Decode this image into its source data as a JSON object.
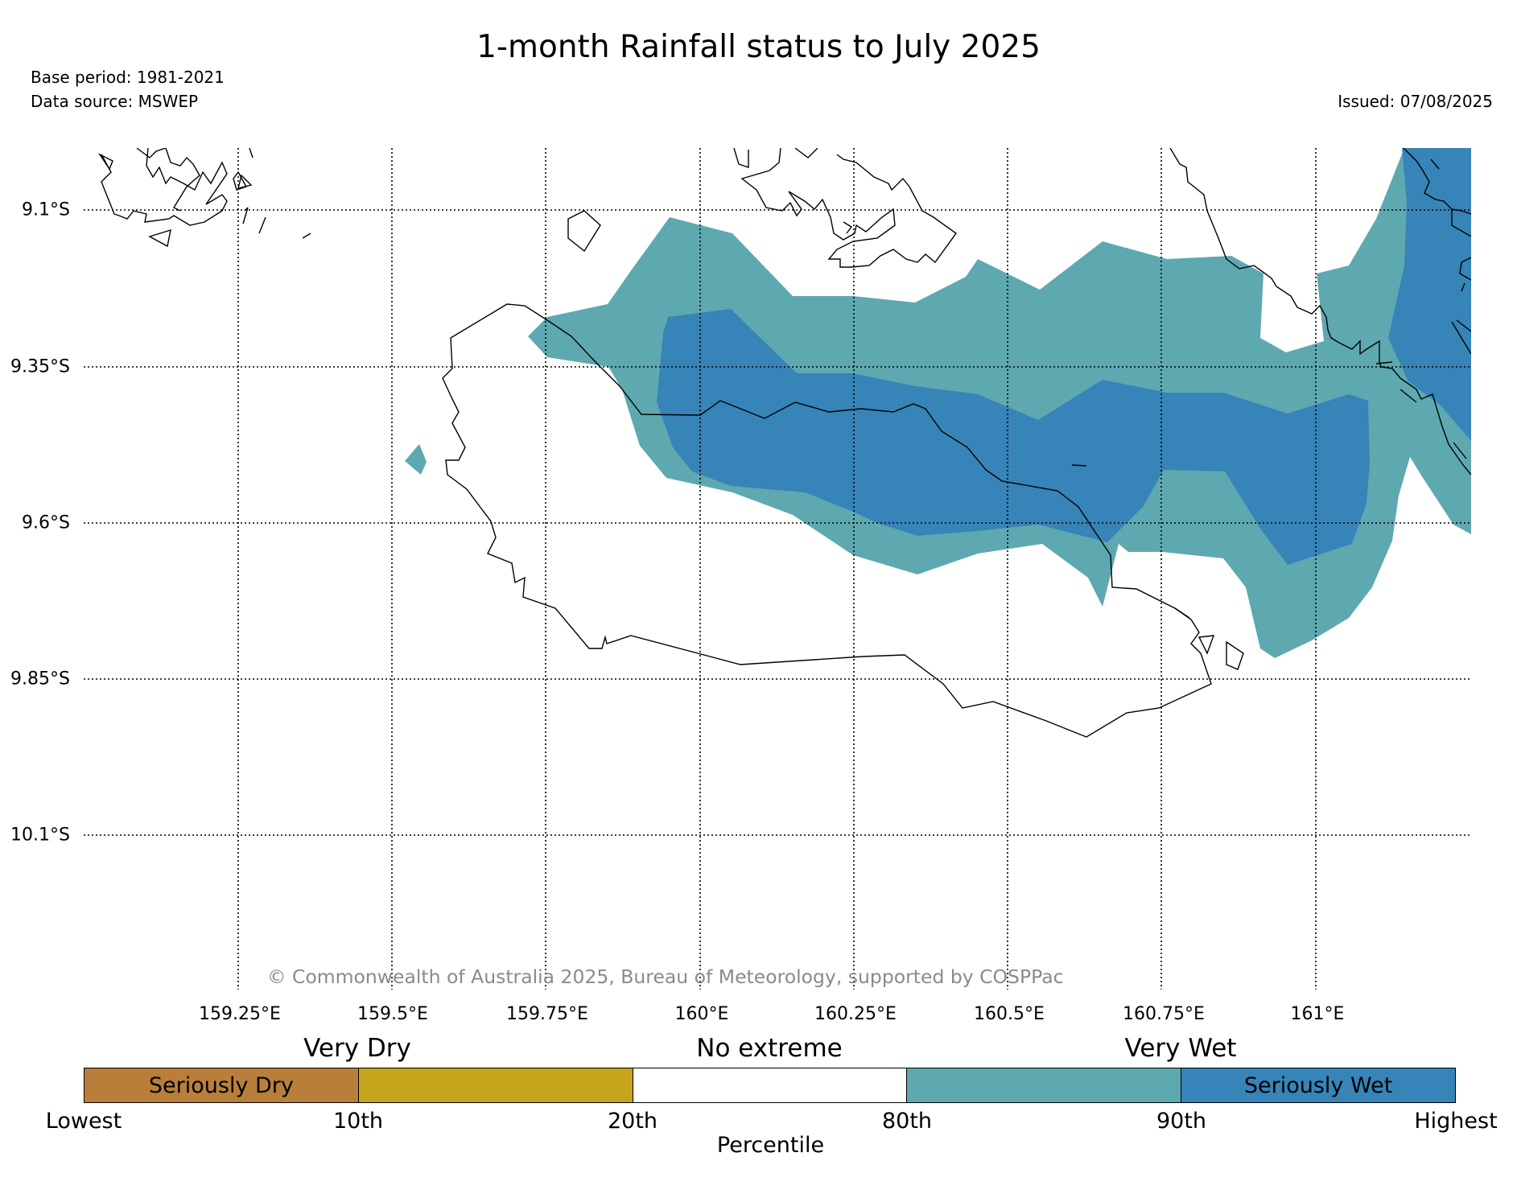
{
  "header": {
    "title": "1-month Rainfall status to July 2025",
    "base_period": "Base period: 1981-2021",
    "data_source": "Data source: MSWEP",
    "issued": "Issued: 07/08/2025"
  },
  "map": {
    "lat_labels": [
      "9.1°S",
      "9.35°S",
      "9.6°S",
      "9.85°S",
      "10.1°S"
    ],
    "lon_labels": [
      "159.25°E",
      "159.5°E",
      "159.75°E",
      "160°E",
      "160.25°E",
      "160.5°E",
      "160.75°E",
      "161°E"
    ],
    "copyright": "© Commonwealth of Australia 2025, Bureau of Meteorology, supported by COSPPac",
    "colors": {
      "very_wet": "#5ea9b0",
      "seriously_wet": "#3684b8",
      "coastline": "#000000"
    }
  },
  "legend": {
    "group_labels": [
      "Very Dry",
      "No extreme",
      "Very Wet"
    ],
    "segments": [
      {
        "label": "Seriously Dry",
        "color": "#b97f3a"
      },
      {
        "label": "",
        "color": "#c6a41c"
      },
      {
        "label": "",
        "color": "#ffffff"
      },
      {
        "label": "",
        "color": "#5ea9b0"
      },
      {
        "label": "Seriously Wet",
        "color": "#3684b8"
      }
    ],
    "ticks": [
      "Lowest",
      "10th",
      "20th",
      "80th",
      "90th",
      "Highest"
    ],
    "axis_label": "Percentile"
  }
}
